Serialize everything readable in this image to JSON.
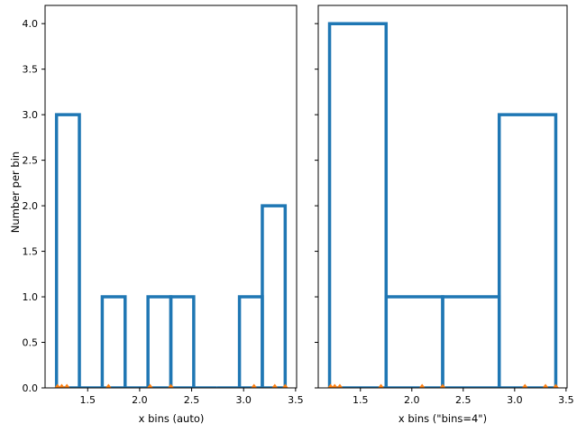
{
  "figure": {
    "background": "#ffffff",
    "ylabel": "Number per bin"
  },
  "chart_data": [
    {
      "type": "bar",
      "subtype": "histogram-outline-with-rug",
      "xlabel": "x bins (auto)",
      "ylabel": "Number per bin",
      "bin_edges": [
        1.2,
        1.42,
        1.64,
        1.86,
        2.08,
        2.3,
        2.52,
        2.74,
        2.96,
        3.18,
        3.4
      ],
      "counts": [
        3,
        0,
        1,
        0,
        1,
        1,
        0,
        0,
        1,
        2
      ],
      "rug_points": [
        1.21,
        1.25,
        1.3,
        1.7,
        2.1,
        2.3,
        3.1,
        3.3,
        3.4
      ],
      "xlim": [
        1.09,
        3.51
      ],
      "ylim": [
        0,
        4.2
      ],
      "xticks": [
        1.5,
        2.0,
        2.5,
        3.0,
        3.5
      ],
      "xtick_labels": [
        "1.5",
        "2.0",
        "2.5",
        "3.0",
        "3.5"
      ],
      "yticks": [
        0,
        0.5,
        1.0,
        1.5,
        2.0,
        2.5,
        3.0,
        3.5,
        4.0
      ],
      "ytick_labels": [
        "0.0",
        "0.5",
        "1.0",
        "1.5",
        "2.0",
        "2.5",
        "3.0",
        "3.5",
        "4.0"
      ],
      "show_ytick_labels": true,
      "grid": false,
      "hist_color": "#1f77b4",
      "marker_color": "#ff7f0e",
      "spine_color": "#000000"
    },
    {
      "type": "bar",
      "subtype": "histogram-outline-with-rug",
      "xlabel": "x bins (\"bins=4\")",
      "ylabel": "",
      "bin_edges": [
        1.2,
        1.75,
        2.3,
        2.85,
        3.4
      ],
      "counts": [
        4,
        1,
        1,
        3
      ],
      "rug_points": [
        1.21,
        1.25,
        1.3,
        1.7,
        2.1,
        2.3,
        3.1,
        3.3,
        3.4
      ],
      "xlim": [
        1.09,
        3.51
      ],
      "ylim": [
        0,
        4.2
      ],
      "xticks": [
        1.5,
        2.0,
        2.5,
        3.0,
        3.5
      ],
      "xtick_labels": [
        "1.5",
        "2.0",
        "2.5",
        "3.0",
        "3.5"
      ],
      "yticks": [
        0,
        0.5,
        1.0,
        1.5,
        2.0,
        2.5,
        3.0,
        3.5,
        4.0
      ],
      "ytick_labels": [
        "0.0",
        "0.5",
        "1.0",
        "1.5",
        "2.0",
        "2.5",
        "3.0",
        "3.5",
        "4.0"
      ],
      "show_ytick_labels": false,
      "grid": false,
      "hist_color": "#1f77b4",
      "marker_color": "#ff7f0e",
      "spine_color": "#000000"
    }
  ]
}
